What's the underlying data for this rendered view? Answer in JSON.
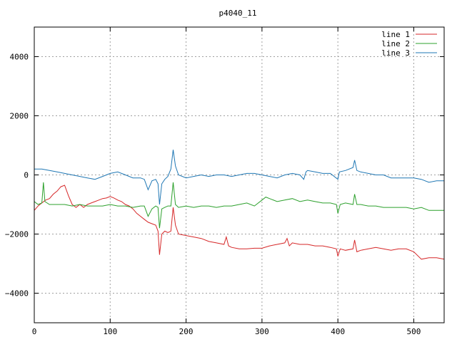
{
  "chart_data": {
    "type": "line",
    "title": "p4040_11",
    "xlabel": "",
    "ylabel": "",
    "xlim": [
      0,
      540
    ],
    "ylim": [
      -5000,
      5000
    ],
    "xticks": [
      0,
      100,
      200,
      300,
      400,
      500
    ],
    "yticks": [
      -4000,
      -2000,
      0,
      2000,
      4000
    ],
    "grid": true,
    "legend_position": "top-right",
    "series": [
      {
        "name": "line 1",
        "color": "#d62728",
        "points": [
          [
            0,
            -1200
          ],
          [
            5,
            -1050
          ],
          [
            10,
            -950
          ],
          [
            15,
            -850
          ],
          [
            20,
            -800
          ],
          [
            25,
            -650
          ],
          [
            30,
            -550
          ],
          [
            35,
            -400
          ],
          [
            40,
            -350
          ],
          [
            45,
            -700
          ],
          [
            50,
            -1000
          ],
          [
            55,
            -1100
          ],
          [
            60,
            -1000
          ],
          [
            65,
            -1100
          ],
          [
            70,
            -1000
          ],
          [
            75,
            -950
          ],
          [
            80,
            -900
          ],
          [
            85,
            -850
          ],
          [
            90,
            -800
          ],
          [
            95,
            -780
          ],
          [
            100,
            -730
          ],
          [
            105,
            -780
          ],
          [
            110,
            -850
          ],
          [
            115,
            -900
          ],
          [
            120,
            -1000
          ],
          [
            125,
            -1050
          ],
          [
            130,
            -1150
          ],
          [
            135,
            -1300
          ],
          [
            140,
            -1400
          ],
          [
            145,
            -1500
          ],
          [
            150,
            -1600
          ],
          [
            155,
            -1650
          ],
          [
            160,
            -1700
          ],
          [
            163,
            -1900
          ],
          [
            165,
            -2700
          ],
          [
            168,
            -2000
          ],
          [
            172,
            -1900
          ],
          [
            176,
            -1950
          ],
          [
            180,
            -1900
          ],
          [
            183,
            -1100
          ],
          [
            186,
            -1700
          ],
          [
            190,
            -2000
          ],
          [
            200,
            -2050
          ],
          [
            210,
            -2100
          ],
          [
            220,
            -2150
          ],
          [
            230,
            -2250
          ],
          [
            240,
            -2300
          ],
          [
            250,
            -2350
          ],
          [
            253,
            -2100
          ],
          [
            256,
            -2400
          ],
          [
            260,
            -2450
          ],
          [
            270,
            -2500
          ],
          [
            280,
            -2500
          ],
          [
            290,
            -2480
          ],
          [
            300,
            -2480
          ],
          [
            310,
            -2400
          ],
          [
            320,
            -2350
          ],
          [
            330,
            -2300
          ],
          [
            333,
            -2150
          ],
          [
            336,
            -2400
          ],
          [
            340,
            -2300
          ],
          [
            350,
            -2350
          ],
          [
            360,
            -2350
          ],
          [
            370,
            -2400
          ],
          [
            380,
            -2400
          ],
          [
            390,
            -2450
          ],
          [
            398,
            -2500
          ],
          [
            400,
            -2750
          ],
          [
            403,
            -2500
          ],
          [
            410,
            -2550
          ],
          [
            420,
            -2500
          ],
          [
            422,
            -2200
          ],
          [
            425,
            -2600
          ],
          [
            430,
            -2550
          ],
          [
            440,
            -2500
          ],
          [
            450,
            -2450
          ],
          [
            460,
            -2500
          ],
          [
            470,
            -2550
          ],
          [
            480,
            -2500
          ],
          [
            490,
            -2500
          ],
          [
            500,
            -2600
          ],
          [
            510,
            -2850
          ],
          [
            520,
            -2800
          ],
          [
            530,
            -2800
          ],
          [
            540,
            -2850
          ]
        ]
      },
      {
        "name": "line 2",
        "color": "#2ca02c",
        "points": [
          [
            0,
            -900
          ],
          [
            5,
            -1000
          ],
          [
            10,
            -950
          ],
          [
            12,
            -250
          ],
          [
            14,
            -900
          ],
          [
            20,
            -1000
          ],
          [
            30,
            -1000
          ],
          [
            40,
            -1000
          ],
          [
            50,
            -1050
          ],
          [
            60,
            -1000
          ],
          [
            70,
            -1050
          ],
          [
            80,
            -1050
          ],
          [
            90,
            -1050
          ],
          [
            100,
            -1000
          ],
          [
            110,
            -1050
          ],
          [
            120,
            -1050
          ],
          [
            130,
            -1100
          ],
          [
            140,
            -1050
          ],
          [
            145,
            -1050
          ],
          [
            150,
            -1400
          ],
          [
            155,
            -1150
          ],
          [
            160,
            -1050
          ],
          [
            163,
            -1100
          ],
          [
            165,
            -1800
          ],
          [
            168,
            -1150
          ],
          [
            172,
            -1100
          ],
          [
            176,
            -1050
          ],
          [
            180,
            -1050
          ],
          [
            183,
            -250
          ],
          [
            186,
            -1000
          ],
          [
            190,
            -1100
          ],
          [
            200,
            -1050
          ],
          [
            210,
            -1100
          ],
          [
            220,
            -1050
          ],
          [
            230,
            -1050
          ],
          [
            240,
            -1100
          ],
          [
            250,
            -1050
          ],
          [
            260,
            -1050
          ],
          [
            270,
            -1000
          ],
          [
            280,
            -950
          ],
          [
            290,
            -1050
          ],
          [
            300,
            -850
          ],
          [
            305,
            -750
          ],
          [
            310,
            -800
          ],
          [
            320,
            -900
          ],
          [
            330,
            -850
          ],
          [
            340,
            -800
          ],
          [
            350,
            -900
          ],
          [
            360,
            -850
          ],
          [
            370,
            -900
          ],
          [
            380,
            -950
          ],
          [
            390,
            -950
          ],
          [
            398,
            -1000
          ],
          [
            400,
            -1300
          ],
          [
            403,
            -1000
          ],
          [
            410,
            -950
          ],
          [
            420,
            -1000
          ],
          [
            422,
            -650
          ],
          [
            425,
            -1000
          ],
          [
            430,
            -1000
          ],
          [
            440,
            -1050
          ],
          [
            450,
            -1050
          ],
          [
            460,
            -1100
          ],
          [
            470,
            -1100
          ],
          [
            480,
            -1100
          ],
          [
            490,
            -1100
          ],
          [
            500,
            -1150
          ],
          [
            510,
            -1100
          ],
          [
            520,
            -1200
          ],
          [
            530,
            -1200
          ],
          [
            540,
            -1200
          ]
        ]
      },
      {
        "name": "line 3",
        "color": "#1f77b4",
        "points": [
          [
            0,
            200
          ],
          [
            10,
            200
          ],
          [
            20,
            150
          ],
          [
            30,
            100
          ],
          [
            40,
            50
          ],
          [
            50,
            0
          ],
          [
            60,
            -50
          ],
          [
            70,
            -100
          ],
          [
            80,
            -150
          ],
          [
            90,
            -50
          ],
          [
            100,
            50
          ],
          [
            110,
            100
          ],
          [
            120,
            0
          ],
          [
            130,
            -100
          ],
          [
            140,
            -100
          ],
          [
            145,
            -150
          ],
          [
            150,
            -500
          ],
          [
            155,
            -200
          ],
          [
            160,
            -150
          ],
          [
            163,
            -300
          ],
          [
            165,
            -1000
          ],
          [
            168,
            -300
          ],
          [
            172,
            -150
          ],
          [
            176,
            -50
          ],
          [
            180,
            200
          ],
          [
            183,
            850
          ],
          [
            186,
            300
          ],
          [
            190,
            0
          ],
          [
            200,
            -100
          ],
          [
            210,
            -50
          ],
          [
            220,
            0
          ],
          [
            230,
            -50
          ],
          [
            240,
            0
          ],
          [
            250,
            0
          ],
          [
            260,
            -50
          ],
          [
            270,
            0
          ],
          [
            280,
            50
          ],
          [
            290,
            50
          ],
          [
            300,
            0
          ],
          [
            310,
            -50
          ],
          [
            320,
            -100
          ],
          [
            330,
            0
          ],
          [
            340,
            50
          ],
          [
            350,
            0
          ],
          [
            355,
            -150
          ],
          [
            358,
            100
          ],
          [
            360,
            150
          ],
          [
            370,
            100
          ],
          [
            380,
            50
          ],
          [
            390,
            50
          ],
          [
            400,
            -150
          ],
          [
            402,
            100
          ],
          [
            410,
            150
          ],
          [
            420,
            250
          ],
          [
            422,
            500
          ],
          [
            425,
            150
          ],
          [
            430,
            100
          ],
          [
            440,
            50
          ],
          [
            450,
            0
          ],
          [
            460,
            0
          ],
          [
            470,
            -100
          ],
          [
            480,
            -100
          ],
          [
            490,
            -100
          ],
          [
            500,
            -100
          ],
          [
            510,
            -150
          ],
          [
            520,
            -250
          ],
          [
            530,
            -200
          ],
          [
            540,
            -200
          ]
        ]
      }
    ]
  }
}
